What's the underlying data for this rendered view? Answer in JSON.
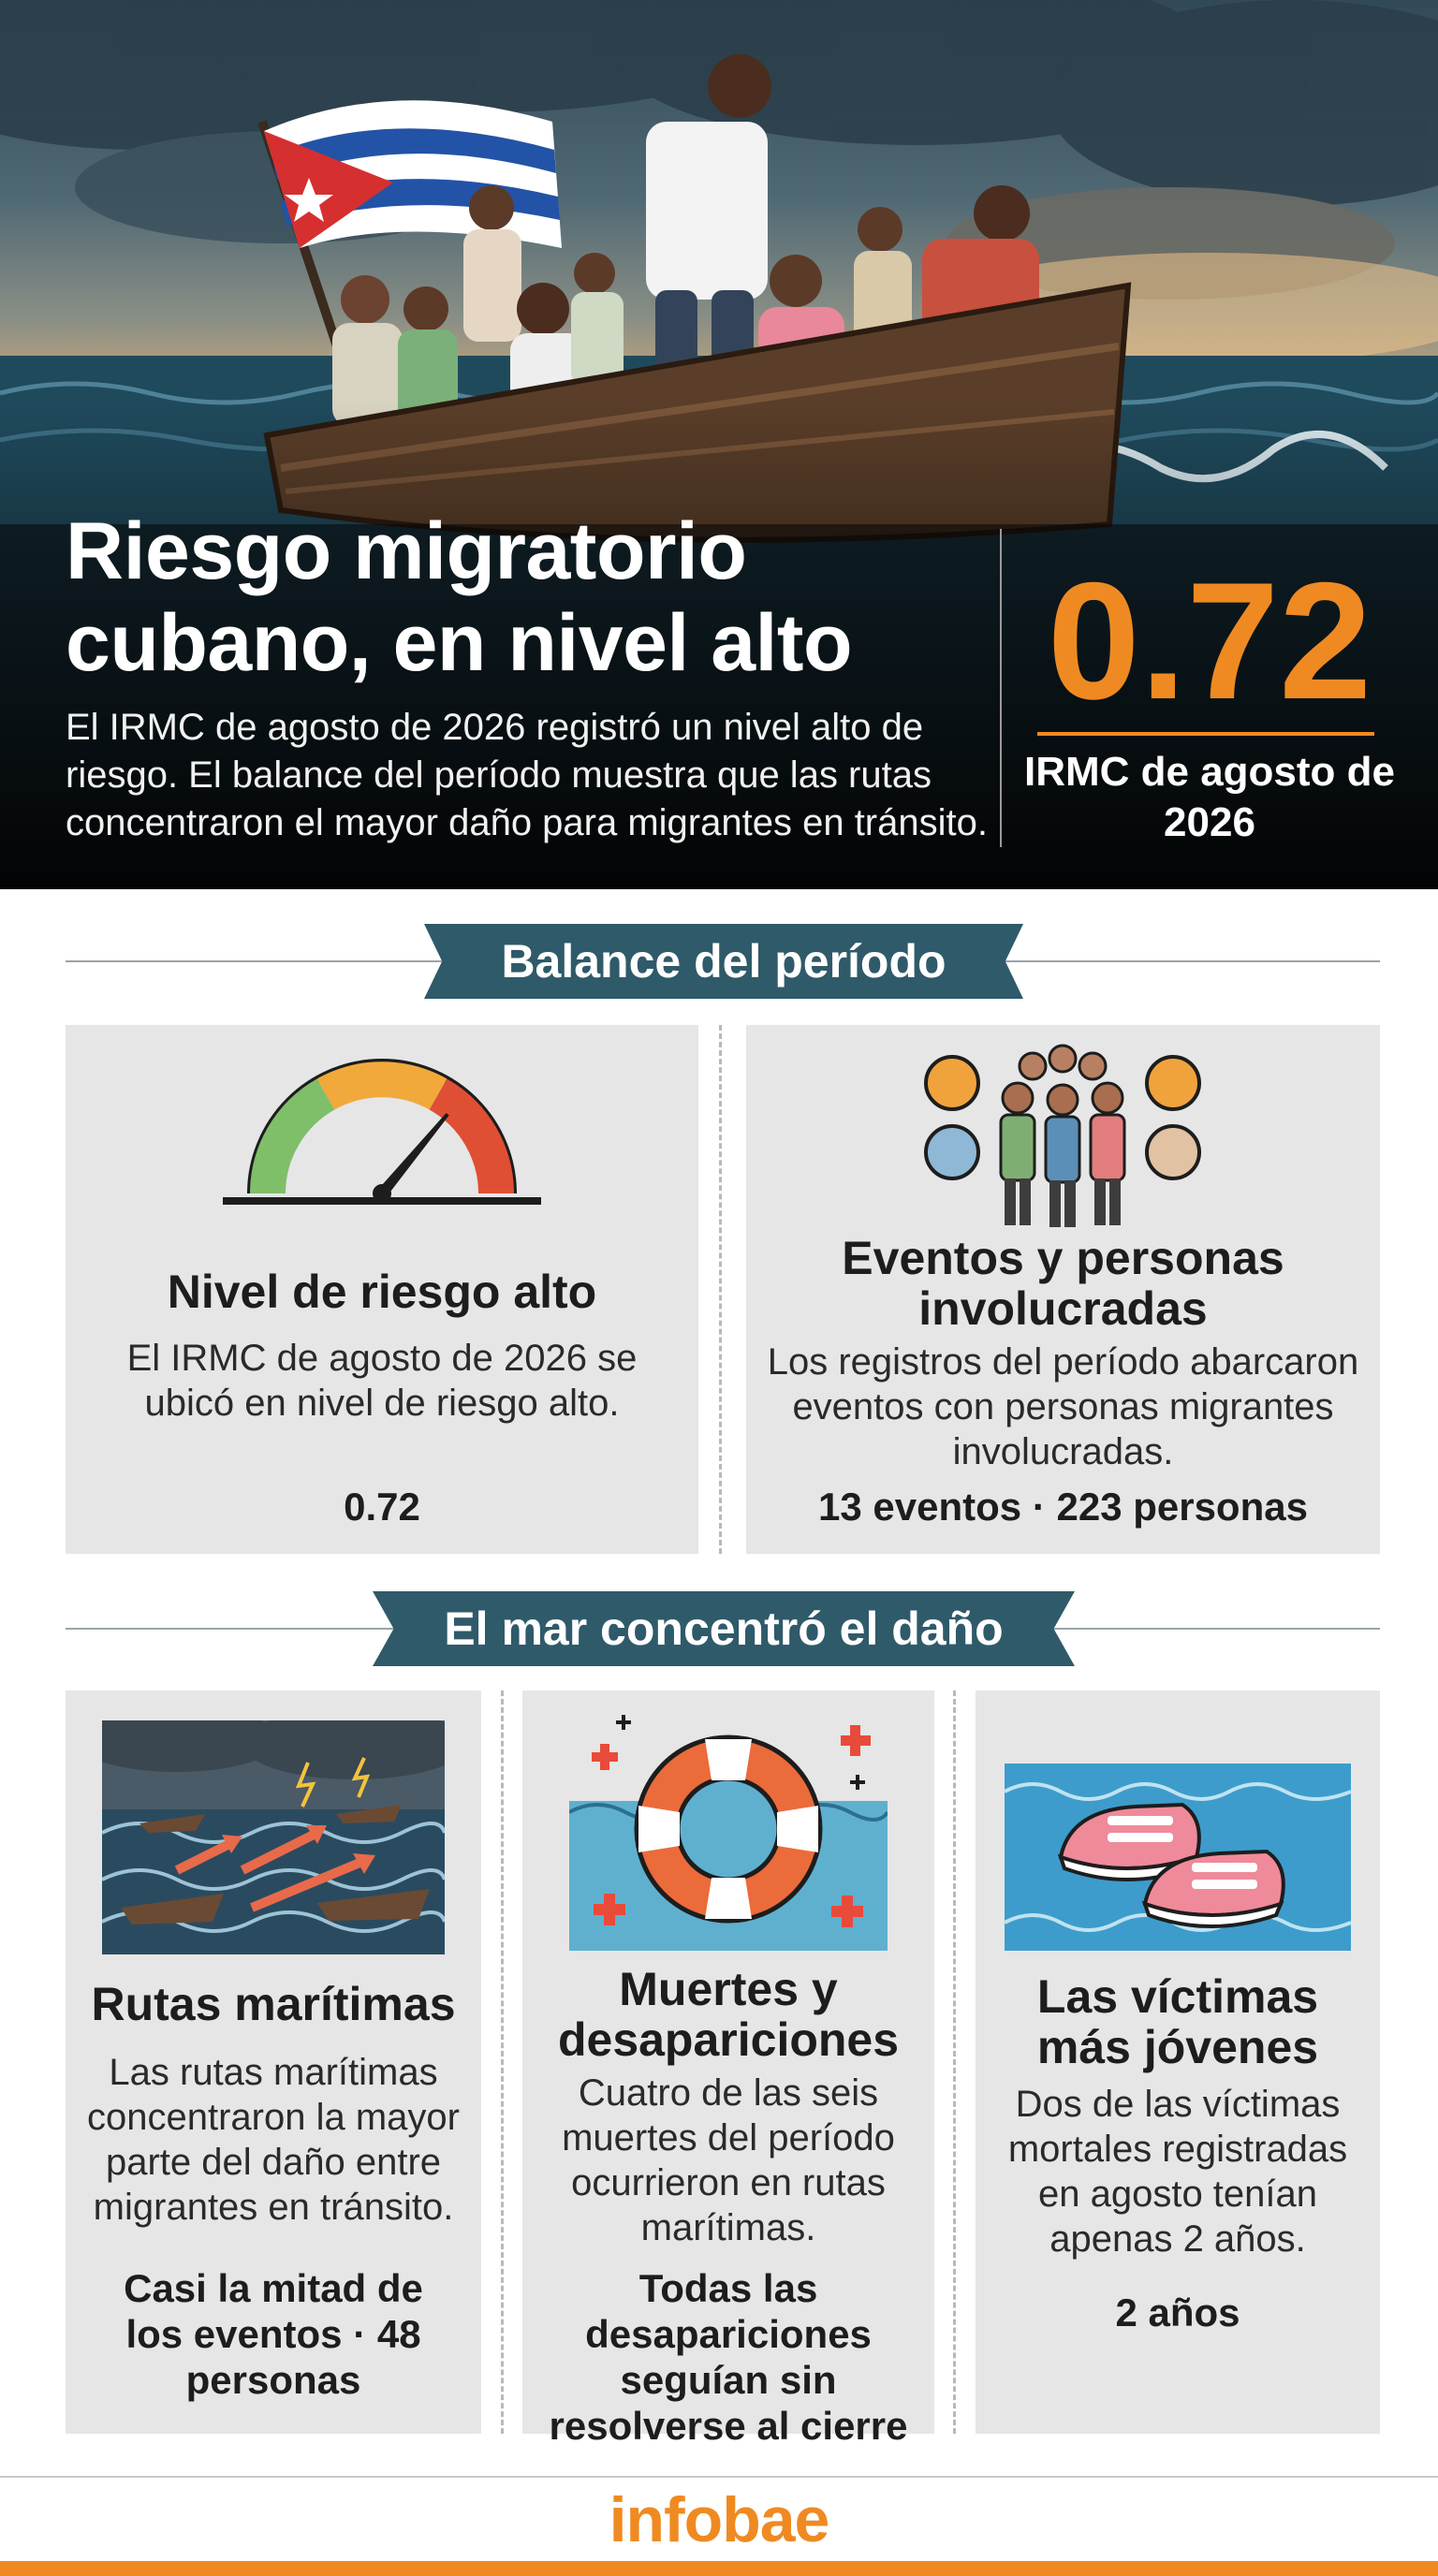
{
  "hero": {
    "title_line1": "Riesgo migratorio",
    "title_line2": "cubano, en nivel alto",
    "description": "El IRMC de agosto de 2026 registró un nivel alto de riesgo. El balance del período muestra que las rutas concentraron el mayor daño para migrantes en tránsito.",
    "value": "0.72",
    "value_label": "IRMC de agosto de 2026"
  },
  "sections": {
    "balance": {
      "title": "Balance del período",
      "cards": [
        {
          "title": "Nivel de riesgo alto",
          "text": "El IRMC de agosto de 2026 se ubicó en nivel de riesgo alto.",
          "stat": "0.72",
          "icon": "risk-gauge-icon",
          "gauge_level": 0.72
        },
        {
          "title": "Eventos y personas involucradas",
          "text": "Los registros del período abarcaron eventos con personas migrantes involucradas.",
          "stat": "13 eventos · 223 personas",
          "icon": "people-group-icon"
        }
      ]
    },
    "sea": {
      "title": "El mar concentró el daño",
      "cards": [
        {
          "title": "Rutas marítimas",
          "text": "Las rutas marítimas concentraron la mayor parte del daño entre migrantes en tránsito.",
          "stat": "Casi la mitad de los eventos · 48 personas",
          "icon": "stormy-sea-boats-icon"
        },
        {
          "title": "Muertes y desapariciones",
          "text": "Cuatro de las seis muertes del período ocurrieron en rutas marítimas.",
          "stat": "Todas las desapariciones seguían sin resolverse al cierre",
          "icon": "life-ring-icon"
        },
        {
          "title": "Las víctimas más jóvenes",
          "text": "Dos de las víctimas mortales registradas en agosto tenían apenas 2 años.",
          "stat": "2 años",
          "icon": "child-shoes-icon"
        }
      ]
    }
  },
  "footer": {
    "logo": "infobae"
  },
  "colors": {
    "accent": "#ef8a22",
    "banner": "#2f5a6a",
    "card": "#e6e6e6",
    "hero_dark": "#0a0a0a"
  }
}
